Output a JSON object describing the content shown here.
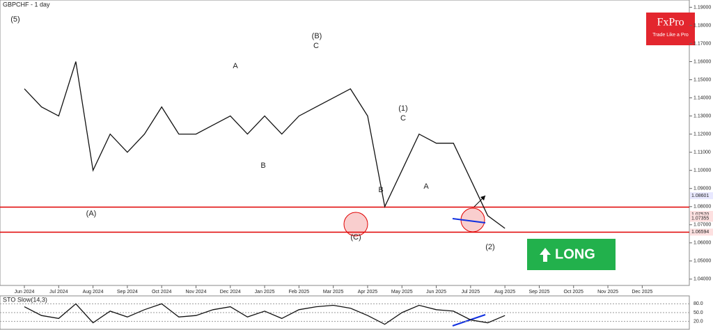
{
  "chart_data": {
    "type": "line",
    "title": "GBPCHF - 1 day",
    "categories": [
      "Jun 2024",
      null,
      "Jul 2024",
      null,
      "Aug 2024",
      null,
      "Sep 2024",
      null,
      "Oct 2024",
      null,
      "Nov 2024",
      null,
      "Dec 2024",
      null,
      "Jan 2025",
      null,
      "Feb 2025",
      null,
      "Mar 2025",
      null,
      "Apr 2025",
      null,
      "May 2025",
      null,
      "Jun 2025",
      null,
      "Jul 2025",
      null,
      "Aug 2025",
      null,
      "Sep 2025",
      null,
      "Oct 2025",
      null,
      "Nov 2025",
      null,
      "Dec 2025",
      null
    ],
    "series": [
      {
        "name": "GBPCHF",
        "color": "#111111",
        "values": [
          1.145,
          1.135,
          1.13,
          1.16,
          1.1,
          1.12,
          1.11,
          1.12,
          1.135,
          1.12,
          1.12,
          1.125,
          1.13,
          1.12,
          1.13,
          1.12,
          1.13,
          1.135,
          1.14,
          1.145,
          1.13,
          1.08,
          1.1,
          1.12,
          1.115,
          1.115,
          1.095,
          1.075,
          1.068,
          null,
          null,
          null,
          null,
          null,
          null,
          null,
          null,
          null
        ]
      }
    ],
    "ylim": [
      1.0365,
      1.194
    ],
    "yticks": [
      {
        "value": 1.19,
        "label": "1.19000"
      },
      {
        "value": 1.18,
        "label": "1.18000"
      },
      {
        "value": 1.17,
        "label": "1.17000"
      },
      {
        "value": 1.16,
        "label": "1.16000"
      },
      {
        "value": 1.15,
        "label": "1.15000"
      },
      {
        "value": 1.14,
        "label": "1.14000"
      },
      {
        "value": 1.13,
        "label": "1.13000"
      },
      {
        "value": 1.12,
        "label": "1.12000"
      },
      {
        "value": 1.11,
        "label": "1.11000"
      },
      {
        "value": 1.1,
        "label": "1.10000"
      },
      {
        "value": 1.09,
        "label": "1.09000"
      },
      {
        "value": 1.08,
        "label": "1.08000"
      },
      {
        "value": 1.07,
        "label": "1.07000"
      },
      {
        "value": 1.06,
        "label": "1.06000"
      },
      {
        "value": 1.05,
        "label": "1.05000"
      },
      {
        "value": 1.04,
        "label": "1.04000"
      }
    ],
    "levels": [
      {
        "value": 1.0797,
        "color": "#e00000"
      },
      {
        "value": 1.0659,
        "color": "#e00000"
      }
    ],
    "price_labels": [
      {
        "value": 1.08601,
        "label": "1.08601"
      },
      {
        "value": 1.0757,
        "label": "1.07570"
      },
      {
        "value": 1.07355,
        "label": "1.07355"
      },
      {
        "value": 1.06594,
        "label": "1.06594"
      }
    ],
    "annotations": [
      "(5)",
      "(A)",
      "(B)",
      "(C)",
      "(1)",
      "C",
      "(2)",
      "A",
      "B",
      "C",
      "A",
      "B"
    ],
    "signal": "LONG",
    "brand": "FxPro",
    "slogan": "Trade Like a Pro",
    "oscillator": {
      "title": "STO Slow(14,3)",
      "ylim": [
        0,
        100
      ],
      "yticks": [
        {
          "value": 80,
          "label": "80.0"
        },
        {
          "value": 50,
          "label": "50.0"
        },
        {
          "value": 20,
          "label": "20.0"
        }
      ],
      "values": [
        70,
        40,
        30,
        80,
        15,
        55,
        35,
        60,
        80,
        35,
        40,
        60,
        70,
        35,
        55,
        30,
        60,
        70,
        75,
        65,
        40,
        10,
        50,
        75,
        60,
        55,
        25,
        15,
        40,
        null,
        null,
        null,
        null,
        null,
        null,
        null,
        null,
        null
      ],
      "color": "#111111"
    }
  }
}
